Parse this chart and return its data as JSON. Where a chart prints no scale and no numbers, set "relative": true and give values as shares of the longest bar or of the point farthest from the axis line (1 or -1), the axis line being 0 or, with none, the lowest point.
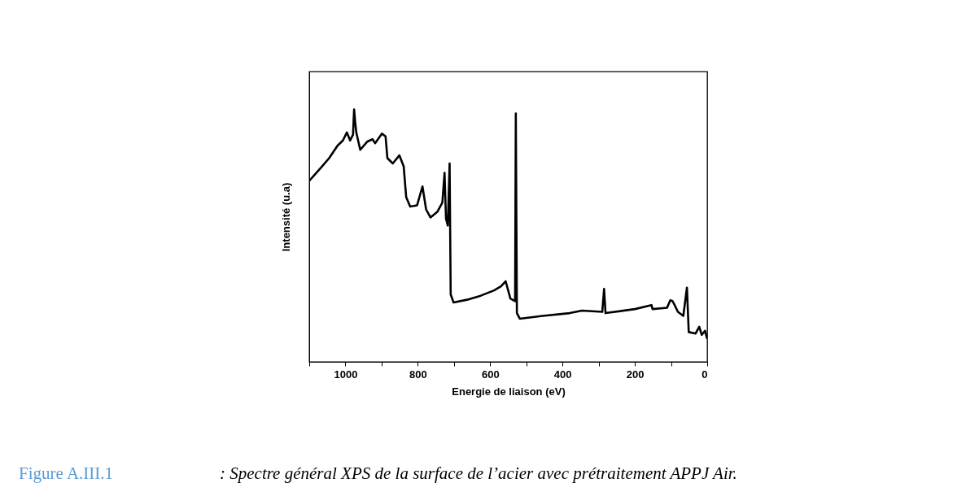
{
  "chart_data": {
    "type": "line",
    "xlabel": "Energie de liaison (eV)",
    "ylabel": "Intensité (u.a)",
    "relative": true,
    "color": "#000000",
    "line_style": "solid",
    "marker": "none",
    "grid": false,
    "xlim": [
      1100,
      0
    ],
    "xticks": [
      {
        "value": 1100,
        "label": null
      },
      1000,
      {
        "value": 900,
        "label": null
      },
      800,
      {
        "value": 700,
        "label": null
      },
      600,
      {
        "value": 500,
        "label": null
      },
      400,
      {
        "value": 300,
        "label": null
      },
      200,
      {
        "value": 100,
        "label": null
      },
      0
    ],
    "x": [
      1100,
      1067,
      1045,
      1022,
      1007,
      996,
      987,
      979,
      976,
      973,
      970,
      959,
      940,
      925,
      918,
      899,
      889,
      884,
      869,
      851,
      839,
      832,
      821,
      802,
      787,
      777,
      765,
      746,
      732,
      726,
      722,
      717,
      712,
      709,
      701,
      664,
      626,
      589,
      570,
      557,
      544,
      531,
      529,
      526,
      518,
      455,
      380,
      346,
      290,
      285,
      281,
      200,
      154,
      151,
      111,
      102,
      96,
      90,
      81,
      66,
      56,
      51,
      32,
      22,
      15,
      6,
      0
    ],
    "values": [
      0.717,
      0.77,
      0.807,
      0.856,
      0.877,
      0.909,
      0.877,
      0.9,
      1,
      0.95,
      0.909,
      0.84,
      0.872,
      0.882,
      0.866,
      0.904,
      0.893,
      0.807,
      0.786,
      0.818,
      0.775,
      0.652,
      0.615,
      0.62,
      0.695,
      0.604,
      0.572,
      0.594,
      0.631,
      0.749,
      0.567,
      0.54,
      0.786,
      0.267,
      0.235,
      0.246,
      0.262,
      0.283,
      0.299,
      0.319,
      0.251,
      0.24,
      0.984,
      0.193,
      0.171,
      0.182,
      0.193,
      0.203,
      0.198,
      0.289,
      0.193,
      0.209,
      0.225,
      0.209,
      0.214,
      0.244,
      0.241,
      0.225,
      0.198,
      0.182,
      0.294,
      0.118,
      0.112,
      0.139,
      0.107,
      0.123,
      0.091
    ],
    "annotations": [
      "Figure A.III.1",
      ":  Spectre général XPS de la surface de l’acier avec prétraitement APPJ Air."
    ]
  }
}
